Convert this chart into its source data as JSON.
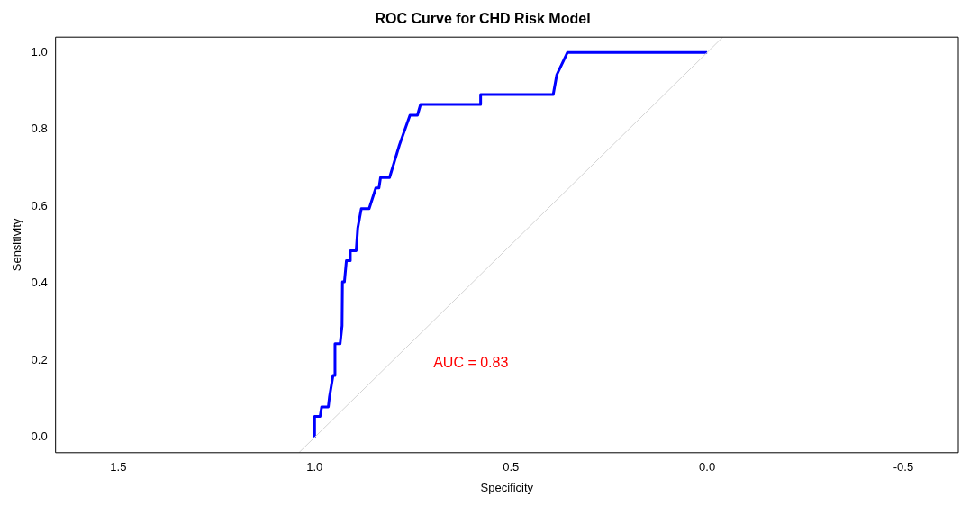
{
  "chart_data": {
    "type": "line",
    "title": "ROC Curve for CHD Risk Model",
    "xlabel": "Specificity",
    "ylabel": "Sensitivity",
    "xlim": [
      1.66,
      -0.64
    ],
    "ylim": [
      -0.04,
      1.04
    ],
    "xticks": [
      {
        "value": 1.5,
        "label": "1.5"
      },
      {
        "value": 1,
        "label": "1.0"
      },
      {
        "value": 0.5,
        "label": "0.5"
      },
      {
        "value": 0,
        "label": "0.0"
      },
      {
        "value": -0.5,
        "label": "-0.5"
      }
    ],
    "yticks": [
      {
        "value": 0,
        "label": "0.0"
      },
      {
        "value": 0.2,
        "label": "0.2"
      },
      {
        "value": 0.4,
        "label": "0.4"
      },
      {
        "value": 0.6,
        "label": "0.6"
      },
      {
        "value": 0.8,
        "label": "0.8"
      },
      {
        "value": 1,
        "label": "1.0"
      }
    ],
    "grid": false,
    "legend": false,
    "marker": "none",
    "line_style": "solid",
    "annotations": [
      "AUC = 0.83"
    ],
    "series": [
      {
        "color": "#d3d3d3",
        "x": [
          1.04,
          -0.04
        ],
        "values": [
          -0.04,
          1.04
        ]
      },
      {
        "color": "#0000ff",
        "x": [
          1.0,
          1.0,
          0.986,
          0.982,
          0.965,
          0.962,
          0.953,
          0.948,
          0.948,
          0.935,
          0.93,
          0.929,
          0.924,
          0.919,
          0.909,
          0.909,
          0.894,
          0.89,
          0.881,
          0.861,
          0.844,
          0.836,
          0.832,
          0.809,
          0.784,
          0.757,
          0.738,
          0.73,
          0.577,
          0.577,
          0.392,
          0.383,
          0.356,
          0.0
        ],
        "values": [
          0,
          0.054,
          0.054,
          0.079,
          0.079,
          0.106,
          0.161,
          0.161,
          0.243,
          0.243,
          0.29,
          0.404,
          0.404,
          0.459,
          0.459,
          0.485,
          0.485,
          0.544,
          0.594,
          0.594,
          0.648,
          0.648,
          0.675,
          0.675,
          0.759,
          0.837,
          0.837,
          0.865,
          0.865,
          0.891,
          0.891,
          0.942,
          1.0,
          1.0
        ]
      }
    ]
  }
}
